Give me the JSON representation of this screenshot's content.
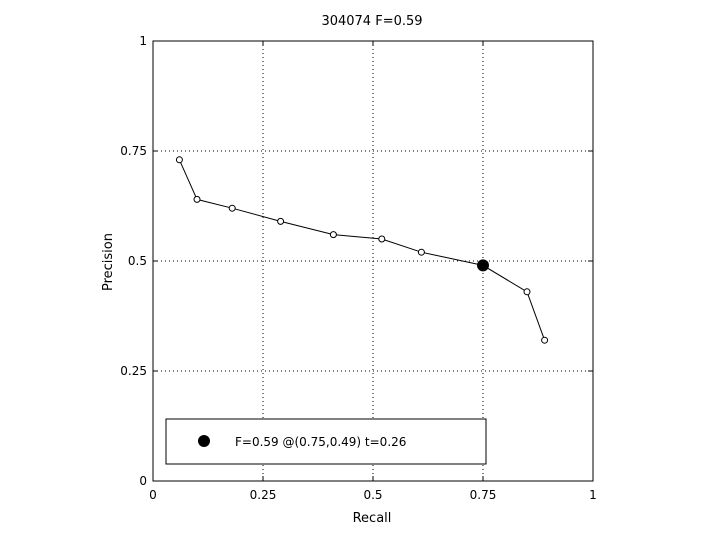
{
  "chart_data": {
    "type": "line",
    "title": "304074 F=0.59",
    "xlabel": "Recall",
    "ylabel": "Precision",
    "xlim": [
      0,
      1
    ],
    "ylim": [
      0,
      1
    ],
    "grid": true,
    "x_ticks": [
      "0",
      "0.25",
      "0.5",
      "0.75",
      "1"
    ],
    "y_ticks": [
      "0",
      "0.25",
      "0.5",
      "0.75",
      "1"
    ],
    "series": [
      {
        "x": [
          0.06,
          0.1,
          0.18,
          0.29,
          0.41,
          0.52,
          0.61,
          0.75,
          0.85,
          0.89
        ],
        "y": [
          0.73,
          0.64,
          0.62,
          0.59,
          0.56,
          0.55,
          0.52,
          0.49,
          0.43,
          0.32
        ]
      }
    ],
    "highlight_point": {
      "x": 0.75,
      "y": 0.49
    },
    "legend": {
      "text": "F=0.59 @(0.75,0.49) t=0.26",
      "placement": "bottom-left"
    }
  }
}
